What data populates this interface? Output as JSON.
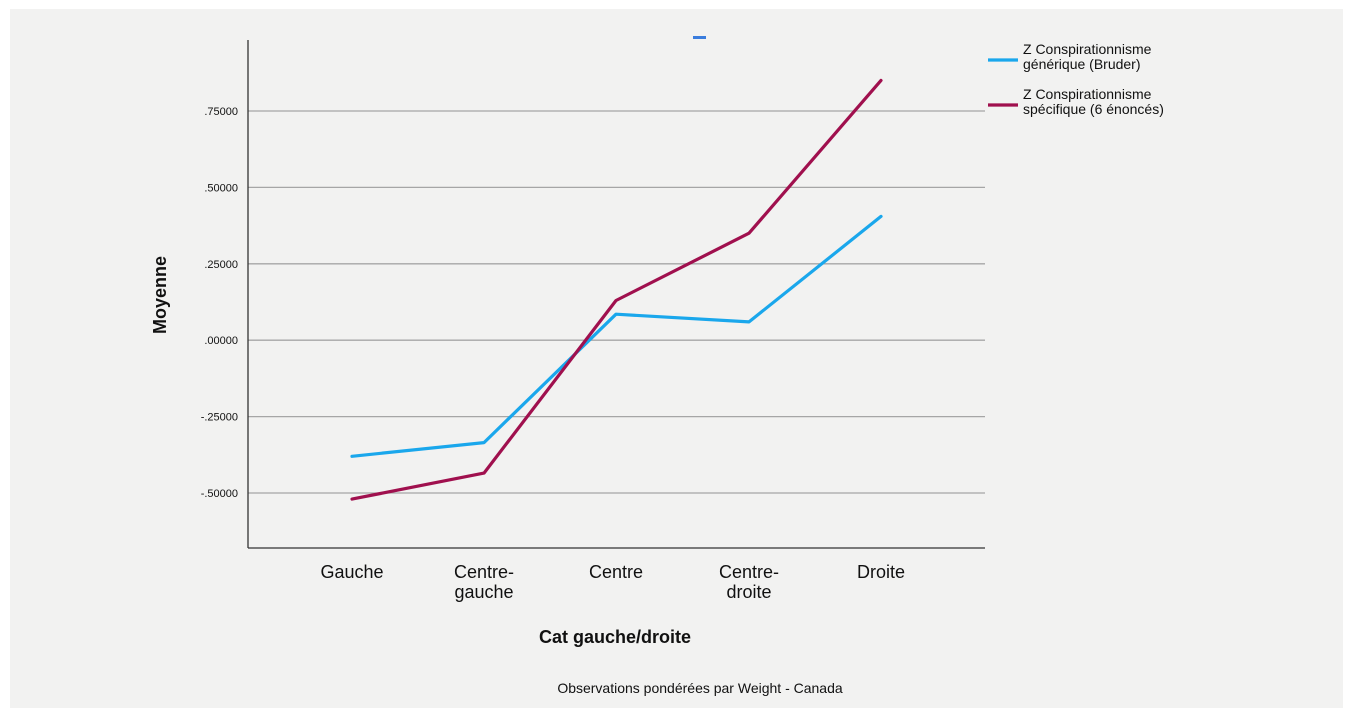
{
  "chart_data": {
    "type": "line",
    "xlabel": "Cat gauche/droite",
    "ylabel": "Moyenne",
    "footnote": "Observations pondérées par Weight - Canada",
    "categories": [
      [
        "Gauche"
      ],
      [
        "Centre-",
        "gauche"
      ],
      [
        "Centre"
      ],
      [
        "Centre-",
        "droite"
      ],
      [
        "Droite"
      ]
    ],
    "yticks": [
      {
        "value": -0.5,
        "label": "-.50000"
      },
      {
        "value": -0.25,
        "label": "-.25000"
      },
      {
        "value": 0.0,
        "label": ".00000"
      },
      {
        "value": 0.25,
        "label": ".25000"
      },
      {
        "value": 0.5,
        "label": ".50000"
      },
      {
        "value": 0.75,
        "label": ".75000"
      }
    ],
    "ylim": [
      -0.68,
      0.97
    ],
    "grid": true,
    "legend_position": "right",
    "series": [
      {
        "name": [
          "Z Conspirationnisme",
          "générique (Bruder)"
        ],
        "color": "#1aa7ec",
        "values": [
          -0.38,
          -0.335,
          0.085,
          0.06,
          0.405
        ]
      },
      {
        "name": [
          "Z Conspirationnisme",
          "spécifique (6 énoncés)"
        ],
        "color": "#a0104e",
        "values": [
          -0.52,
          -0.435,
          0.13,
          0.35,
          0.85
        ]
      }
    ]
  }
}
